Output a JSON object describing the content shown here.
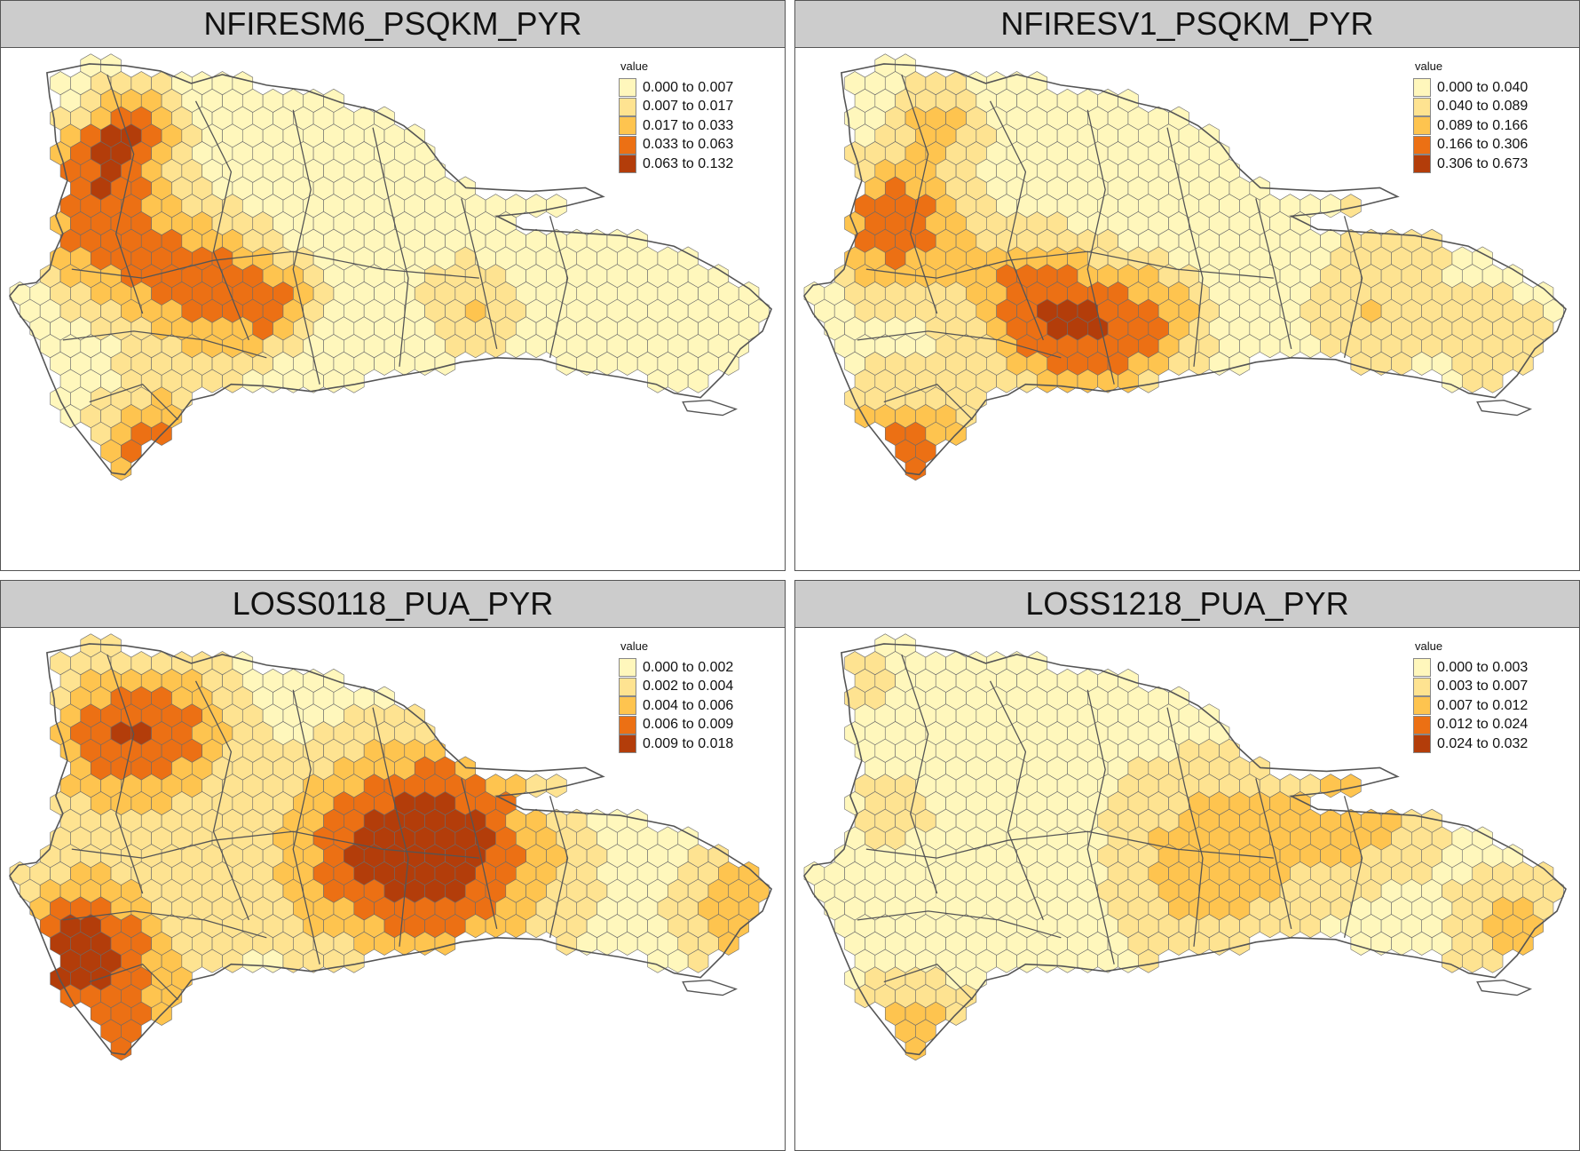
{
  "legend_title": "value",
  "palette": [
    "#fff7bc",
    "#fee391",
    "#fec44f",
    "#ec7014",
    "#b33d0a"
  ],
  "panels": [
    {
      "title": "NFIRESM6_PSQKM_PYR",
      "legend": [
        "0.000 to 0.007",
        "0.007 to 0.017",
        "0.017 to 0.033",
        "0.033 to 0.063",
        "0.063 to 0.132"
      ]
    },
    {
      "title": "NFIRESV1_PSQKM_PYR",
      "legend": [
        "0.000 to 0.040",
        "0.040 to 0.089",
        "0.089 to 0.166",
        "0.166 to 0.306",
        "0.306 to 0.673"
      ]
    },
    {
      "title": "LOSS0118_PUA_PYR",
      "legend": [
        "0.000 to 0.002",
        "0.002 to 0.004",
        "0.004 to 0.006",
        "0.006 to 0.009",
        "0.009 to 0.018"
      ]
    },
    {
      "title": "LOSS1218_PUA_PYR",
      "legend": [
        "0.000 to 0.003",
        "0.003 to 0.007",
        "0.007 to 0.012",
        "0.012 to 0.024",
        "0.024 to 0.032"
      ]
    }
  ]
}
